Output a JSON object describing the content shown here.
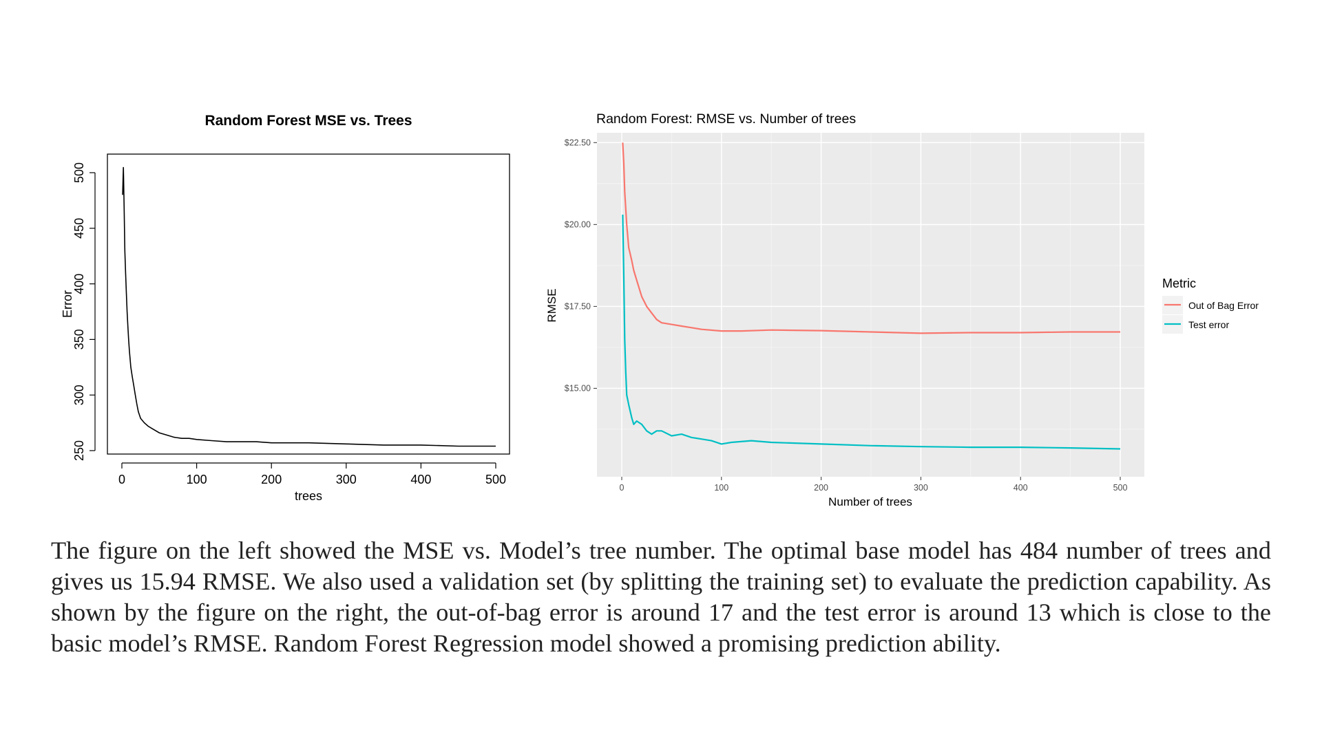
{
  "chart_data": [
    {
      "type": "line",
      "title": "Random Forest MSE vs. Trees",
      "xlabel": "trees",
      "ylabel": "Error",
      "xlim": [
        0,
        500
      ],
      "ylim": [
        250,
        500
      ],
      "x_ticks": [
        "0",
        "100",
        "200",
        "300",
        "400",
        "500"
      ],
      "y_ticks": [
        "250",
        "300",
        "350",
        "400",
        "450",
        "500"
      ],
      "grid": false,
      "legend": "none",
      "line_color": "#000000",
      "series": [
        {
          "x": [
            1,
            2,
            3,
            4,
            5,
            6,
            7,
            8,
            9,
            10,
            12,
            14,
            16,
            18,
            20,
            22,
            25,
            30,
            35,
            40,
            50,
            60,
            70,
            80,
            90,
            100,
            120,
            140,
            160,
            180,
            200,
            250,
            300,
            350,
            400,
            450,
            484,
            500
          ],
          "values": [
            480,
            505,
            468,
            430,
            410,
            392,
            375,
            362,
            350,
            340,
            325,
            316,
            308,
            300,
            292,
            285,
            279,
            275,
            272,
            270,
            266,
            264,
            262,
            261,
            261,
            260,
            259,
            258,
            258,
            258,
            257,
            257,
            256,
            255,
            255,
            254,
            254,
            254
          ]
        }
      ]
    },
    {
      "type": "line",
      "title": "Random Forest: RMSE vs. Number of trees",
      "xlabel": "Number of trees",
      "ylabel": "RMSE",
      "xlim": [
        0,
        500
      ],
      "ylim": [
        12.3,
        22.8
      ],
      "x_ticks": [
        "0",
        "100",
        "200",
        "300",
        "400",
        "500"
      ],
      "y_ticks": [
        "$15.00",
        "$17.50",
        "$20.00",
        "$22.50"
      ],
      "grid": true,
      "legend": "right",
      "legend_title": "Metric",
      "series": [
        {
          "name": "Out of Bag Error",
          "color": "#F8766D",
          "x": [
            1,
            2,
            3,
            5,
            7,
            10,
            12,
            15,
            20,
            25,
            30,
            35,
            40,
            50,
            60,
            70,
            80,
            100,
            120,
            150,
            200,
            250,
            300,
            350,
            400,
            450,
            500
          ],
          "values": [
            22.5,
            21.9,
            21.0,
            20.0,
            19.3,
            18.9,
            18.6,
            18.3,
            17.8,
            17.5,
            17.3,
            17.1,
            17.0,
            16.95,
            16.9,
            16.85,
            16.8,
            16.75,
            16.75,
            16.78,
            16.76,
            16.72,
            16.68,
            16.7,
            16.7,
            16.72,
            16.72
          ]
        },
        {
          "name": "Test error",
          "color": "#00BFC4",
          "x": [
            1,
            2,
            3,
            4,
            5,
            7,
            10,
            12,
            15,
            20,
            25,
            30,
            35,
            40,
            50,
            60,
            70,
            80,
            90,
            100,
            110,
            130,
            150,
            200,
            250,
            300,
            350,
            400,
            450,
            500
          ],
          "values": [
            20.3,
            18.5,
            16.5,
            15.5,
            14.8,
            14.5,
            14.1,
            13.9,
            14.0,
            13.9,
            13.7,
            13.6,
            13.7,
            13.7,
            13.55,
            13.6,
            13.5,
            13.45,
            13.4,
            13.3,
            13.35,
            13.4,
            13.35,
            13.3,
            13.25,
            13.22,
            13.2,
            13.2,
            13.18,
            13.15
          ]
        }
      ]
    }
  ],
  "caption": "The figure on the left showed the MSE vs. Model’s tree number. The optimal base model has 484 number of trees and gives us 15.94 RMSE. We also used a validation set (by splitting the training set) to evaluate the prediction capability. As shown by the figure on the right, the out-of-bag error is around 17 and the test error is around 13 which is close to the basic model’s RMSE. Random Forest Regression model showed a promising prediction ability."
}
